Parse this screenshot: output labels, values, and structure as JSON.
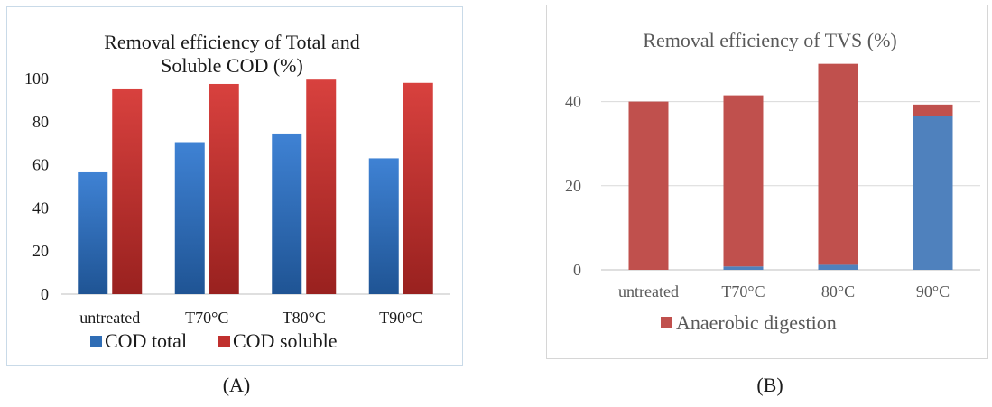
{
  "chart_data": [
    {
      "type": "bar",
      "title": "Removal efficiency of Total and Soluble COD (%)",
      "title_lines": [
        "Removal efficiency of Total and",
        "Soluble COD (%)"
      ],
      "categories": [
        "untreated",
        "T70°C",
        "T80°C",
        "T90°C"
      ],
      "series": [
        {
          "name": "COD total",
          "color": "#2f6db5",
          "values": [
            56.5,
            70.5,
            74.5,
            63
          ]
        },
        {
          "name": "COD soluble",
          "color": "#c0302e",
          "values": [
            95,
            97.5,
            99.5,
            98
          ]
        }
      ],
      "ylim": [
        0,
        100
      ],
      "yticks": [
        0,
        20,
        40,
        60,
        80,
        100
      ],
      "grid": false,
      "legend": "bottom"
    },
    {
      "type": "bar",
      "stacked": true,
      "title": "Removal efficiency of TVS (%)",
      "categories": [
        "untreated",
        "T70°C",
        "80°C",
        "90°C"
      ],
      "series": [
        {
          "name": "",
          "color": "#4f81bd",
          "values": [
            0,
            0.8,
            1.2,
            36.5
          ]
        },
        {
          "name": "Anaerobic digestion",
          "color": "#c0504d",
          "values": [
            40,
            40.7,
            47.8,
            2.8
          ]
        }
      ],
      "ylim": [
        0,
        50
      ],
      "yticks": [
        0,
        20,
        40
      ],
      "grid": true,
      "legend": "bottom"
    }
  ],
  "captions": {
    "a": "(A)",
    "b": "(B)"
  }
}
